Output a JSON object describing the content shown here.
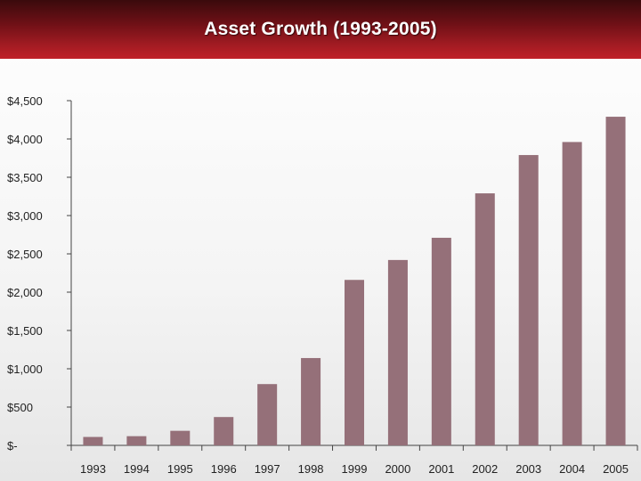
{
  "chart_data": {
    "type": "bar",
    "title": "Asset Growth (1993-2005)",
    "xlabel": "",
    "ylabel": "",
    "categories": [
      "1993",
      "1994",
      "1995",
      "1996",
      "1997",
      "1998",
      "1999",
      "2000",
      "2001",
      "2002",
      "2003",
      "2004",
      "2005"
    ],
    "values": [
      110,
      120,
      190,
      370,
      800,
      1140,
      2160,
      2420,
      2710,
      3290,
      3790,
      3960,
      4290
    ],
    "ylim": [
      0,
      4500
    ],
    "yticks": [
      0,
      500,
      1000,
      1500,
      2000,
      2500,
      3000,
      3500,
      4000,
      4500
    ],
    "ytick_labels": [
      "$-",
      "$500",
      "$1,000",
      "$1,500",
      "$2,000",
      "$2,500",
      "$3,000",
      "$3,500",
      "$4,000",
      "$4,500"
    ],
    "grid": false,
    "legend": "none",
    "bar_color": "#957079",
    "header_color": "#8b141b"
  }
}
